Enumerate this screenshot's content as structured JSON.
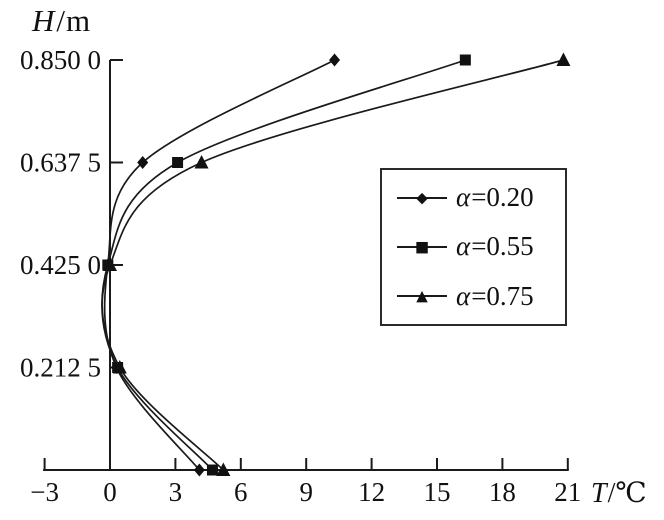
{
  "chart_data": {
    "type": "line",
    "title": "",
    "xlabel": "T/℃",
    "ylabel": "H/m",
    "xlabel_var": "T",
    "xlabel_unit": "/℃",
    "ylabel_var": "H",
    "ylabel_unit": "/m",
    "grid": false,
    "x_axis": {
      "min": -3,
      "max": 21,
      "ticks": [
        -3,
        0,
        3,
        6,
        9,
        12,
        15,
        18,
        21
      ],
      "tick_labels": [
        "−3",
        "0",
        "3",
        "6",
        "9",
        "12",
        "15",
        "18",
        "21"
      ]
    },
    "y_axis": {
      "min": 0,
      "max": 0.85,
      "ticks": [
        0.2125,
        0.425,
        0.6375,
        0.85
      ],
      "tick_labels": [
        "0.212 5",
        "0.425 0",
        "0.637 5",
        "0.850 0"
      ]
    },
    "legend": {
      "position": "middle-right",
      "border": true
    },
    "series": [
      {
        "name": "α=0.20",
        "marker": "diamond",
        "color": "#111111",
        "points_TH": [
          [
            4.1,
            0
          ],
          [
            0.3,
            0.2125
          ],
          [
            -0.1,
            0.425
          ],
          [
            1.5,
            0.6375
          ],
          [
            10.3,
            0.85
          ]
        ]
      },
      {
        "name": "α=0.55",
        "marker": "square",
        "color": "#111111",
        "points_TH": [
          [
            4.7,
            0
          ],
          [
            0.35,
            0.2125
          ],
          [
            -0.1,
            0.425
          ],
          [
            3.1,
            0.6375
          ],
          [
            16.3,
            0.85
          ]
        ]
      },
      {
        "name": "α=0.75",
        "marker": "triangle",
        "color": "#111111",
        "points_TH": [
          [
            5.2,
            0
          ],
          [
            0.45,
            0.2125
          ],
          [
            0,
            0.425
          ],
          [
            4.2,
            0.6375
          ],
          [
            20.8,
            0.85
          ]
        ]
      }
    ]
  }
}
